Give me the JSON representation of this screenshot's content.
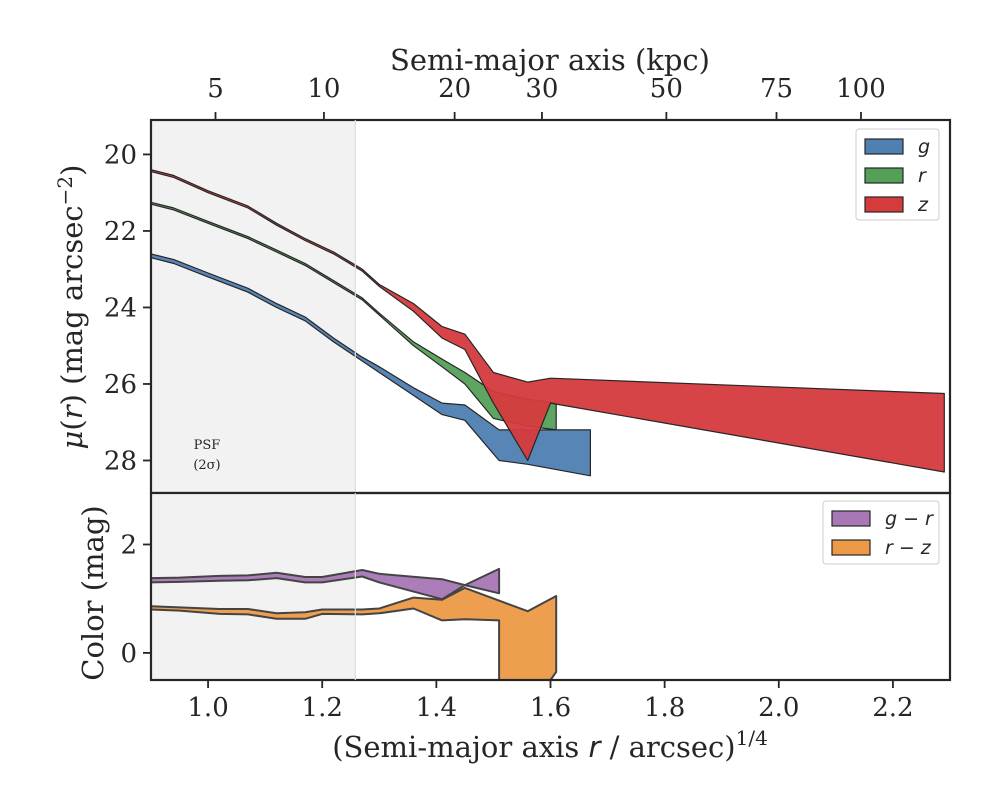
{
  "colors": {
    "g": "#4e80b2",
    "r": "#55a058",
    "z": "#d53a3d",
    "g_r": "#a877b5",
    "r_z": "#ec9a46",
    "psf_shade": "#f2f2f2",
    "outline": "#262626"
  },
  "chart_data": [
    {
      "panel": "surface-brightness",
      "type": "area",
      "title": "",
      "xlabel": "(Semi-major axis r / arcsec)^1/4",
      "top_xlabel": "Semi-major axis (kpc)",
      "ylabel": "μ(r) (mag arcsec^-2)",
      "xlim": [
        0.9,
        2.3
      ],
      "ylim": [
        28.85,
        19.1
      ],
      "y_inverted": true,
      "xticks": [
        1.0,
        1.2,
        1.4,
        1.6,
        1.8,
        2.0,
        2.2
      ],
      "xtick_labels": [
        "1.0",
        "1.2",
        "1.4",
        "1.6",
        "1.8",
        "2.0",
        "2.2"
      ],
      "yticks": [
        20,
        22,
        24,
        26,
        28
      ],
      "ytick_labels": [
        "20",
        "22",
        "24",
        "26",
        "28"
      ],
      "top_xticks": [
        {
          "x": 1.013,
          "label": "5"
        },
        {
          "x": 1.203,
          "label": "10"
        },
        {
          "x": 1.432,
          "label": "20"
        },
        {
          "x": 1.585,
          "label": "30"
        },
        {
          "x": 1.803,
          "label": "50"
        },
        {
          "x": 1.996,
          "label": "75"
        },
        {
          "x": 2.144,
          "label": "100"
        }
      ],
      "psf_region": {
        "x": [
          0.9,
          1.258
        ],
        "label_line1": "PSF",
        "label_line2": "(2σ)"
      },
      "legend": {
        "placement": "top-right",
        "entries": [
          "g",
          "r",
          "z"
        ]
      },
      "grid": false,
      "series": [
        {
          "name": "g",
          "color_key": "g",
          "upper": [
            [
              0.9,
              22.6
            ],
            [
              0.94,
              22.75
            ],
            [
              1.0,
              23.1
            ],
            [
              1.07,
              23.5
            ],
            [
              1.12,
              23.9
            ],
            [
              1.17,
              24.25
            ],
            [
              1.22,
              24.8
            ],
            [
              1.27,
              25.3
            ],
            [
              1.3,
              25.55
            ],
            [
              1.36,
              26.1
            ],
            [
              1.41,
              26.5
            ],
            [
              1.45,
              26.55
            ],
            [
              1.51,
              27.2
            ],
            [
              1.56,
              27.2
            ],
            [
              1.67,
              27.2
            ]
          ],
          "lower": [
            [
              0.9,
              22.7
            ],
            [
              0.94,
              22.85
            ],
            [
              1.0,
              23.2
            ],
            [
              1.07,
              23.6
            ],
            [
              1.12,
              24.0
            ],
            [
              1.17,
              24.35
            ],
            [
              1.22,
              24.9
            ],
            [
              1.27,
              25.4
            ],
            [
              1.3,
              25.7
            ],
            [
              1.36,
              26.3
            ],
            [
              1.41,
              26.8
            ],
            [
              1.45,
              26.95
            ],
            [
              1.51,
              28.0
            ],
            [
              1.56,
              28.1
            ],
            [
              1.67,
              28.4
            ]
          ]
        },
        {
          "name": "r",
          "color_key": "r",
          "upper": [
            [
              0.9,
              21.25
            ],
            [
              0.94,
              21.4
            ],
            [
              1.0,
              21.75
            ],
            [
              1.07,
              22.15
            ],
            [
              1.12,
              22.5
            ],
            [
              1.17,
              22.85
            ],
            [
              1.22,
              23.3
            ],
            [
              1.27,
              23.75
            ],
            [
              1.3,
              24.15
            ],
            [
              1.36,
              24.9
            ],
            [
              1.41,
              25.35
            ],
            [
              1.45,
              25.7
            ],
            [
              1.5,
              26.2
            ],
            [
              1.56,
              26.4
            ],
            [
              1.61,
              26.5
            ]
          ],
          "lower": [
            [
              0.9,
              21.3
            ],
            [
              0.94,
              21.45
            ],
            [
              1.0,
              21.8
            ],
            [
              1.07,
              22.2
            ],
            [
              1.12,
              22.55
            ],
            [
              1.17,
              22.9
            ],
            [
              1.22,
              23.35
            ],
            [
              1.27,
              23.8
            ],
            [
              1.3,
              24.2
            ],
            [
              1.36,
              25.0
            ],
            [
              1.41,
              25.55
            ],
            [
              1.45,
              26.0
            ],
            [
              1.5,
              26.9
            ],
            [
              1.56,
              27.1
            ],
            [
              1.61,
              27.2
            ]
          ]
        },
        {
          "name": "z",
          "color_key": "z",
          "upper": [
            [
              0.9,
              20.4
            ],
            [
              0.94,
              20.55
            ],
            [
              1.0,
              20.95
            ],
            [
              1.07,
              21.35
            ],
            [
              1.12,
              21.8
            ],
            [
              1.17,
              22.2
            ],
            [
              1.22,
              22.55
            ],
            [
              1.27,
              23.0
            ],
            [
              1.3,
              23.4
            ],
            [
              1.36,
              23.9
            ],
            [
              1.41,
              24.5
            ],
            [
              1.45,
              24.7
            ],
            [
              1.5,
              25.7
            ],
            [
              1.56,
              25.95
            ],
            [
              1.6,
              25.85
            ],
            [
              2.29,
              26.25
            ]
          ],
          "lower": [
            [
              0.9,
              20.45
            ],
            [
              0.94,
              20.6
            ],
            [
              1.0,
              21.0
            ],
            [
              1.07,
              21.4
            ],
            [
              1.12,
              21.85
            ],
            [
              1.17,
              22.25
            ],
            [
              1.22,
              22.6
            ],
            [
              1.27,
              23.05
            ],
            [
              1.3,
              23.45
            ],
            [
              1.36,
              24.1
            ],
            [
              1.41,
              24.8
            ],
            [
              1.45,
              25.1
            ],
            [
              1.5,
              26.5
            ],
            [
              1.56,
              28.0
            ],
            [
              1.6,
              26.5
            ],
            [
              2.29,
              28.3
            ]
          ]
        }
      ]
    },
    {
      "panel": "color",
      "type": "area",
      "title": "",
      "xlabel": "(Semi-major axis r / arcsec)^1/4",
      "ylabel": "Color (mag)",
      "xlim": [
        0.9,
        2.3
      ],
      "ylim": [
        -0.5,
        2.95
      ],
      "yticks": [
        0,
        2
      ],
      "ytick_labels": [
        "0",
        "2"
      ],
      "legend": {
        "placement": "top-right",
        "entries": [
          "g − r",
          "r − z"
        ]
      },
      "grid": false,
      "series": [
        {
          "name": "g − r",
          "color_key": "g_r",
          "upper": [
            [
              0.9,
              1.38
            ],
            [
              0.95,
              1.39
            ],
            [
              1.02,
              1.42
            ],
            [
              1.07,
              1.43
            ],
            [
              1.12,
              1.48
            ],
            [
              1.17,
              1.4
            ],
            [
              1.2,
              1.4
            ],
            [
              1.27,
              1.53
            ],
            [
              1.3,
              1.46
            ],
            [
              1.41,
              1.36
            ],
            [
              1.45,
              1.25
            ],
            [
              1.51,
              1.55
            ]
          ],
          "lower": [
            [
              1.51,
              1.1
            ],
            [
              1.45,
              1.25
            ],
            [
              1.41,
              0.99
            ],
            [
              1.3,
              1.3
            ],
            [
              1.27,
              1.41
            ],
            [
              1.2,
              1.3
            ],
            [
              1.17,
              1.3
            ],
            [
              1.12,
              1.38
            ],
            [
              1.07,
              1.34
            ],
            [
              1.02,
              1.33
            ],
            [
              0.95,
              1.31
            ],
            [
              0.9,
              1.3
            ]
          ]
        },
        {
          "name": "r − z",
          "color_key": "r_z",
          "upper": [
            [
              0.9,
              0.86
            ],
            [
              0.95,
              0.84
            ],
            [
              1.02,
              0.81
            ],
            [
              1.07,
              0.81
            ],
            [
              1.12,
              0.73
            ],
            [
              1.17,
              0.75
            ],
            [
              1.2,
              0.8
            ],
            [
              1.27,
              0.8
            ],
            [
              1.3,
              0.82
            ],
            [
              1.36,
              1.02
            ],
            [
              1.41,
              0.98
            ],
            [
              1.45,
              1.2
            ],
            [
              1.56,
              0.77
            ],
            [
              1.61,
              1.05
            ],
            [
              1.61,
              -0.35
            ],
            [
              1.6,
              -0.5
            ],
            [
              1.51,
              -0.5
            ]
          ],
          "lower": [
            [
              1.51,
              0.6
            ],
            [
              1.45,
              0.62
            ],
            [
              1.41,
              0.6
            ],
            [
              1.36,
              0.82
            ],
            [
              1.3,
              0.73
            ],
            [
              1.27,
              0.71
            ],
            [
              1.2,
              0.72
            ],
            [
              1.17,
              0.63
            ],
            [
              1.12,
              0.63
            ],
            [
              1.07,
              0.71
            ],
            [
              1.02,
              0.72
            ],
            [
              0.95,
              0.78
            ],
            [
              0.9,
              0.8
            ]
          ]
        }
      ]
    }
  ]
}
